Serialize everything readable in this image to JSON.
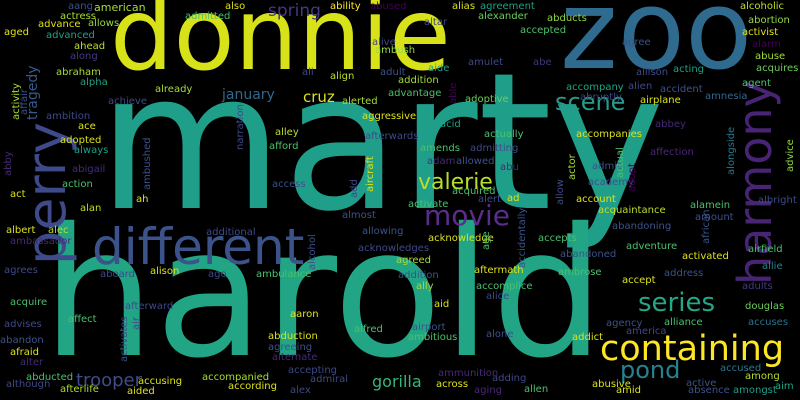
{
  "words": [
    {
      "text": "marty",
      "color": "#1f9e89"
    },
    {
      "text": "harold",
      "color": "#21a585"
    },
    {
      "text": "donnie",
      "color": "#d8e219"
    },
    {
      "text": "zoo",
      "color": "#2f6b8e"
    },
    {
      "text": "different",
      "color": "#3b528b"
    },
    {
      "text": "perry",
      "color": "#3e4a89"
    },
    {
      "text": "harmony",
      "color": "#482475"
    },
    {
      "text": "containing",
      "color": "#fde725"
    },
    {
      "text": "series",
      "color": "#22a884"
    },
    {
      "text": "movie",
      "color": "#5a2d8a"
    },
    {
      "text": "valerie",
      "color": "#b5de2b"
    },
    {
      "text": "scene",
      "color": "#2a9a8b"
    },
    {
      "text": "pond",
      "color": "#25838e"
    },
    {
      "text": "trooper",
      "color": "#3e4c8a"
    },
    {
      "text": "gorilla",
      "color": "#35b779"
    },
    {
      "text": "spring",
      "color": "#453781"
    },
    {
      "text": "cruz",
      "color": "#dde318"
    },
    {
      "text": "january",
      "color": "#31688e"
    },
    {
      "text": "tragedy",
      "color": "#38598c"
    },
    {
      "text": "american",
      "color": "#a8db34"
    },
    {
      "text": "ability",
      "color": "#fde725"
    },
    {
      "text": "abused",
      "color": "#440154"
    },
    {
      "text": "agreement",
      "color": "#1fa187"
    },
    {
      "text": "abducts",
      "color": "#8fd744"
    },
    {
      "text": "alcoholic",
      "color": "#bddf26"
    },
    {
      "text": "abortion",
      "color": "#95d840"
    },
    {
      "text": "activist",
      "color": "#dde318"
    },
    {
      "text": "alarm",
      "color": "#440154"
    },
    {
      "text": "abuse",
      "color": "#a2da37"
    },
    {
      "text": "acquires",
      "color": "#6ccd5a"
    },
    {
      "text": "agent",
      "color": "#4ac16d"
    },
    {
      "text": "amnesia",
      "color": "#31688e"
    },
    {
      "text": "abbey",
      "color": "#482878"
    },
    {
      "text": "advice",
      "color": "#8fd744"
    },
    {
      "text": "albright",
      "color": "#3e4989"
    },
    {
      "text": "airfield",
      "color": "#4ac16d"
    },
    {
      "text": "allie",
      "color": "#26828e"
    },
    {
      "text": "accuses",
      "color": "#2c728e"
    },
    {
      "text": "among",
      "color": "#b5de2b"
    },
    {
      "text": "aim",
      "color": "#20a486"
    },
    {
      "text": "amongst",
      "color": "#1f9e89"
    },
    {
      "text": "absence",
      "color": "#3b528b"
    },
    {
      "text": "accused",
      "color": "#2a788e"
    },
    {
      "text": "adults",
      "color": "#443983"
    },
    {
      "text": "douglas",
      "color": "#6ccd5a"
    },
    {
      "text": "african",
      "color": "#3b528b"
    },
    {
      "text": "alongside",
      "color": "#2a788e"
    },
    {
      "text": "actress",
      "color": "#a8db34"
    },
    {
      "text": "aang",
      "color": "#3b528b"
    },
    {
      "text": "admitted",
      "color": "#4ac16d"
    },
    {
      "text": "also",
      "color": "#d8e219"
    },
    {
      "text": "aged",
      "color": "#dde318"
    },
    {
      "text": "advanced",
      "color": "#1fa187"
    },
    {
      "text": "advance",
      "color": "#dde318"
    },
    {
      "text": "allows",
      "color": "#95d840"
    },
    {
      "text": "along",
      "color": "#443983"
    },
    {
      "text": "ahead",
      "color": "#bddf26"
    },
    {
      "text": "abraham",
      "color": "#a8db34"
    },
    {
      "text": "alpha",
      "color": "#1fa187"
    },
    {
      "text": "alias",
      "color": "#dde318"
    },
    {
      "text": "alexander",
      "color": "#6ccd5a"
    },
    {
      "text": "altar",
      "color": "#3e4989"
    },
    {
      "text": "alive",
      "color": "#3e4989"
    },
    {
      "text": "ambush",
      "color": "#95d840"
    },
    {
      "text": "abe",
      "color": "#46327e"
    },
    {
      "text": "accepted",
      "color": "#4ac16d"
    },
    {
      "text": "agree",
      "color": "#3b528b"
    },
    {
      "text": "allison",
      "color": "#3e4989"
    },
    {
      "text": "acting",
      "color": "#1f9e89"
    },
    {
      "text": "accident",
      "color": "#3b528b"
    },
    {
      "text": "alien",
      "color": "#3e4989"
    },
    {
      "text": "abruptly",
      "color": "#3e4989"
    },
    {
      "text": "airplane",
      "color": "#dde318"
    },
    {
      "text": "accompany",
      "color": "#21a585"
    },
    {
      "text": "ali",
      "color": "#3e4989"
    },
    {
      "text": "align",
      "color": "#bddf26"
    },
    {
      "text": "adult",
      "color": "#3b528b"
    },
    {
      "text": "aide",
      "color": "#1fa187"
    },
    {
      "text": "amulet",
      "color": "#3e4989"
    },
    {
      "text": "addition",
      "color": "#a8db34"
    },
    {
      "text": "advantage",
      "color": "#4ac16d"
    },
    {
      "text": "adoptive",
      "color": "#6ccd5a"
    },
    {
      "text": "able",
      "color": "#440154"
    },
    {
      "text": "alerted",
      "color": "#a8db34"
    },
    {
      "text": "aggressive",
      "color": "#dde318"
    },
    {
      "text": "already",
      "color": "#a8db34"
    },
    {
      "text": "achieve",
      "color": "#3e4989"
    },
    {
      "text": "activity",
      "color": "#a8db34"
    },
    {
      "text": "affair",
      "color": "#3b528b"
    },
    {
      "text": "ambition",
      "color": "#3e4989"
    },
    {
      "text": "ace",
      "color": "#dde318"
    },
    {
      "text": "adopted",
      "color": "#dde318"
    },
    {
      "text": "always",
      "color": "#1fa187"
    },
    {
      "text": "abigail",
      "color": "#472c7a"
    },
    {
      "text": "action",
      "color": "#4ac16d"
    },
    {
      "text": "abby",
      "color": "#482878"
    },
    {
      "text": "act",
      "color": "#dde318"
    },
    {
      "text": "alan",
      "color": "#bddf26"
    },
    {
      "text": "albert",
      "color": "#dde318"
    },
    {
      "text": "alec",
      "color": "#bddf26"
    },
    {
      "text": "ambassador",
      "color": "#482878"
    },
    {
      "text": "ah",
      "color": "#dde318"
    },
    {
      "text": "ambushed",
      "color": "#3b528b"
    },
    {
      "text": "narration",
      "color": "#3e4989"
    },
    {
      "text": "alley",
      "color": "#bddf26"
    },
    {
      "text": "afford",
      "color": "#4ac16d"
    },
    {
      "text": "access",
      "color": "#3b528b"
    },
    {
      "text": "afterwards",
      "color": "#3e4989"
    },
    {
      "text": "acid",
      "color": "#1fa187"
    },
    {
      "text": "actually",
      "color": "#4ac16d"
    },
    {
      "text": "admitting",
      "color": "#3e4989"
    },
    {
      "text": "amends",
      "color": "#4ac16d"
    },
    {
      "text": "adam",
      "color": "#472c7a"
    },
    {
      "text": "allowed",
      "color": "#3b528b"
    },
    {
      "text": "abu",
      "color": "#482878"
    },
    {
      "text": "aircraft",
      "color": "#dde318"
    },
    {
      "text": "add",
      "color": "#3e4989"
    },
    {
      "text": "acquired",
      "color": "#4ac16d"
    },
    {
      "text": "alert",
      "color": "#3e4989"
    },
    {
      "text": "ad",
      "color": "#dde318"
    },
    {
      "text": "activate",
      "color": "#4ac16d"
    },
    {
      "text": "almost",
      "color": "#3b528b"
    },
    {
      "text": "additional",
      "color": "#3e4989"
    },
    {
      "text": "allowing",
      "color": "#3b528b"
    },
    {
      "text": "acknowledges",
      "color": "#3e4989"
    },
    {
      "text": "acknowledge",
      "color": "#dde318"
    },
    {
      "text": "age",
      "color": "#4ac16d"
    },
    {
      "text": "accidentally",
      "color": "#3b528b"
    },
    {
      "text": "accepts",
      "color": "#4ac16d"
    },
    {
      "text": "abandoned",
      "color": "#3b528b"
    },
    {
      "text": "allow",
      "color": "#3e4989"
    },
    {
      "text": "accompanies",
      "color": "#dde318"
    },
    {
      "text": "actor",
      "color": "#a8db34"
    },
    {
      "text": "admit",
      "color": "#3b528b"
    },
    {
      "text": "actual",
      "color": "#4ac16d"
    },
    {
      "text": "academy",
      "color": "#3b528b"
    },
    {
      "text": "adopt",
      "color": "#440154"
    },
    {
      "text": "account",
      "color": "#dde318"
    },
    {
      "text": "affection",
      "color": "#482878"
    },
    {
      "text": "acquaintance",
      "color": "#bddf26"
    },
    {
      "text": "abandoning",
      "color": "#3b528b"
    },
    {
      "text": "alamein",
      "color": "#4ac16d"
    },
    {
      "text": "amount",
      "color": "#3b528b"
    },
    {
      "text": "adventure",
      "color": "#4ac16d"
    },
    {
      "text": "activated",
      "color": "#dde318"
    },
    {
      "text": "accept",
      "color": "#dde318"
    },
    {
      "text": "address",
      "color": "#3b528b"
    },
    {
      "text": "aboard",
      "color": "#3e4989"
    },
    {
      "text": "alison",
      "color": "#dde318"
    },
    {
      "text": "ago",
      "color": "#3e4989"
    },
    {
      "text": "ambulance",
      "color": "#4ac16d"
    },
    {
      "text": "alcohol",
      "color": "#3b528b"
    },
    {
      "text": "agreed",
      "color": "#a8db34"
    },
    {
      "text": "addition",
      "color": "#3b528b"
    },
    {
      "text": "aftermath",
      "color": "#dde318"
    },
    {
      "text": "ambrose",
      "color": "#4ac16d"
    },
    {
      "text": "ally",
      "color": "#a8db34"
    },
    {
      "text": "accomplice",
      "color": "#4ac16d"
    },
    {
      "text": "alice",
      "color": "#3e4989"
    },
    {
      "text": "aid",
      "color": "#dde318"
    },
    {
      "text": "agrees",
      "color": "#3e4989"
    },
    {
      "text": "acquire",
      "color": "#4ac16d"
    },
    {
      "text": "advises",
      "color": "#3e4989"
    },
    {
      "text": "abandon",
      "color": "#3b528b"
    },
    {
      "text": "afraid",
      "color": "#dde318"
    },
    {
      "text": "alter",
      "color": "#482878"
    },
    {
      "text": "although",
      "color": "#3e4989"
    },
    {
      "text": "abducted",
      "color": "#4ac16d"
    },
    {
      "text": "afterlife",
      "color": "#a8db34"
    },
    {
      "text": "affect",
      "color": "#4ac16d"
    },
    {
      "text": "afterward",
      "color": "#3e4989"
    },
    {
      "text": "activates",
      "color": "#3b528b"
    },
    {
      "text": "air",
      "color": "#3e4989"
    },
    {
      "text": "aided",
      "color": "#dde318"
    },
    {
      "text": "accusing",
      "color": "#dde318"
    },
    {
      "text": "abduction",
      "color": "#dde318"
    },
    {
      "text": "agreeing",
      "color": "#3b528b"
    },
    {
      "text": "alternate",
      "color": "#482878"
    },
    {
      "text": "aaron",
      "color": "#dde318"
    },
    {
      "text": "alfred",
      "color": "#4ac16d"
    },
    {
      "text": "airport",
      "color": "#3b528b"
    },
    {
      "text": "ambitious",
      "color": "#4ac16d"
    },
    {
      "text": "alone",
      "color": "#3b528b"
    },
    {
      "text": "addict",
      "color": "#dde318"
    },
    {
      "text": "agency",
      "color": "#3b528b"
    },
    {
      "text": "america",
      "color": "#3e4989"
    },
    {
      "text": "alliance",
      "color": "#4ac16d"
    },
    {
      "text": "accompanied",
      "color": "#a8db34"
    },
    {
      "text": "according",
      "color": "#dde318"
    },
    {
      "text": "accepting",
      "color": "#3e4989"
    },
    {
      "text": "admiral",
      "color": "#3e4989"
    },
    {
      "text": "alex",
      "color": "#3e4989"
    },
    {
      "text": "ammunition",
      "color": "#482878"
    },
    {
      "text": "across",
      "color": "#dde318"
    },
    {
      "text": "adding",
      "color": "#3e4989"
    },
    {
      "text": "aging",
      "color": "#482878"
    },
    {
      "text": "allen",
      "color": "#4ac16d"
    },
    {
      "text": "abusive",
      "color": "#dde318"
    },
    {
      "text": "amid",
      "color": "#dde318"
    },
    {
      "text": "active",
      "color": "#3b528b"
    }
  ]
}
